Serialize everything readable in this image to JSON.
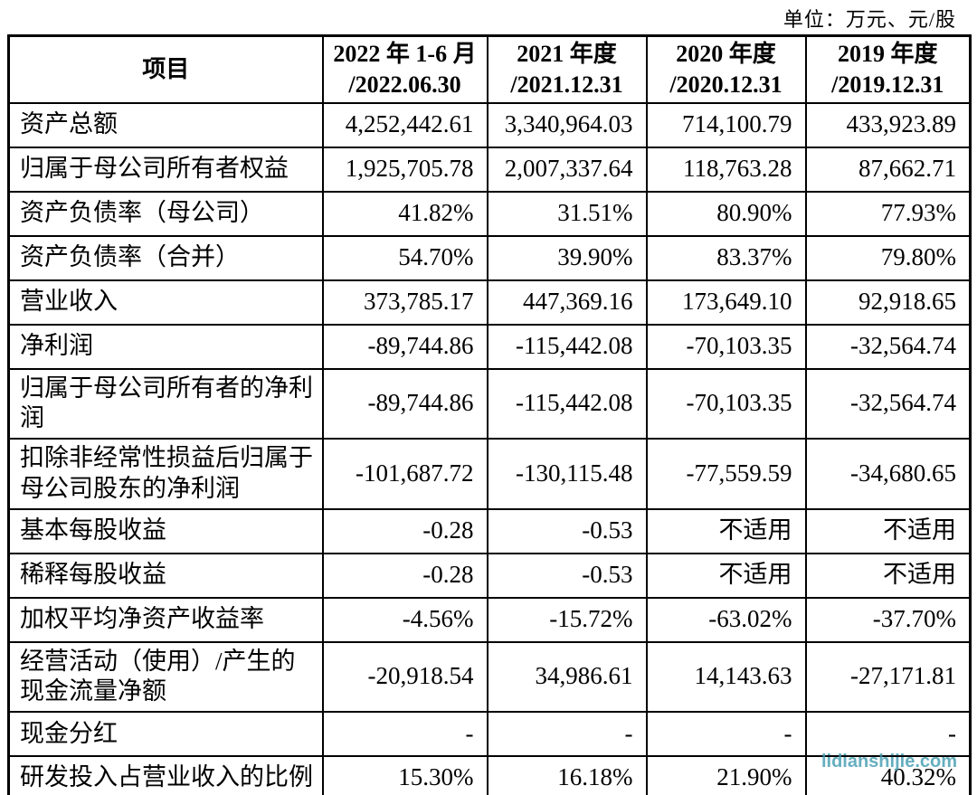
{
  "unit_label": "单位：万元、元/股",
  "watermark": {
    "text": "lidianshijie.com",
    "color": "#3f9ab0"
  },
  "table": {
    "headers": [
      "项目",
      "2022 年 1-6 月\n/2022.06.30",
      "2021 年度\n/2021.12.31",
      "2020 年度\n/2020.12.31",
      "2019 年度\n/2019.12.31"
    ],
    "rows": [
      {
        "label": "资产总额",
        "tall": false,
        "values": [
          "4,252,442.61",
          "3,340,964.03",
          "714,100.79",
          "433,923.89"
        ]
      },
      {
        "label": "归属于母公司所有者权益",
        "tall": false,
        "values": [
          "1,925,705.78",
          "2,007,337.64",
          "118,763.28",
          "87,662.71"
        ]
      },
      {
        "label": "资产负债率（母公司）",
        "tall": false,
        "values": [
          "41.82%",
          "31.51%",
          "80.90%",
          "77.93%"
        ]
      },
      {
        "label": "资产负债率（合并）",
        "tall": false,
        "values": [
          "54.70%",
          "39.90%",
          "83.37%",
          "79.80%"
        ]
      },
      {
        "label": "营业收入",
        "tall": false,
        "values": [
          "373,785.17",
          "447,369.16",
          "173,649.10",
          "92,918.65"
        ]
      },
      {
        "label": "净利润",
        "tall": false,
        "values": [
          "-89,744.86",
          "-115,442.08",
          "-70,103.35",
          "-32,564.74"
        ]
      },
      {
        "label": "归属于母公司所有者的净利润",
        "tall": true,
        "values": [
          "-89,744.86",
          "-115,442.08",
          "-70,103.35",
          "-32,564.74"
        ]
      },
      {
        "label": "扣除非经常性损益后归属于母公司股东的净利润",
        "tall": true,
        "values": [
          "-101,687.72",
          "-130,115.48",
          "-77,559.59",
          "-34,680.65"
        ]
      },
      {
        "label": "基本每股收益",
        "tall": false,
        "values": [
          "-0.28",
          "-0.53",
          "不适用",
          "不适用"
        ]
      },
      {
        "label": "稀释每股收益",
        "tall": false,
        "values": [
          "-0.28",
          "-0.53",
          "不适用",
          "不适用"
        ]
      },
      {
        "label": "加权平均净资产收益率",
        "tall": false,
        "values": [
          "-4.56%",
          "-15.72%",
          "-63.02%",
          "-37.70%"
        ]
      },
      {
        "label": "经营活动（使用）/产生的现金流量净额",
        "tall": true,
        "values": [
          "-20,918.54",
          "34,986.61",
          "14,143.63",
          "-27,171.81"
        ]
      },
      {
        "label": "现金分红",
        "tall": false,
        "values": [
          "-",
          "-",
          "-",
          "-"
        ]
      },
      {
        "label": "研发投入占营业收入的比例",
        "tall": false,
        "values": [
          "15.30%",
          "16.18%",
          "21.90%",
          "40.32%"
        ]
      }
    ]
  }
}
